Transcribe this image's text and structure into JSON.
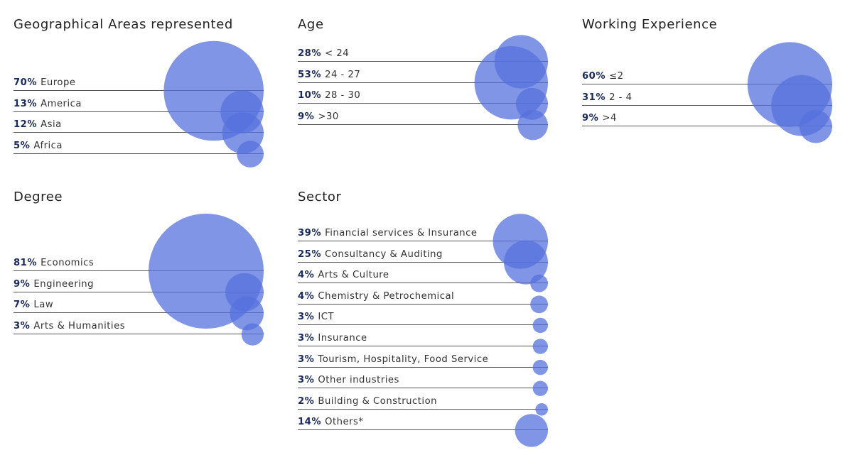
{
  "chart_data": [
    {
      "type": "bubble",
      "title": "Geographical Areas represented",
      "unit": "%",
      "categories": [
        "Europe",
        "America",
        "Asia",
        "Africa"
      ],
      "values": [
        70,
        13,
        12,
        5
      ],
      "labels": [
        "70%",
        "13%",
        "12%",
        "5%"
      ]
    },
    {
      "type": "bubble",
      "title": "Age",
      "unit": "%",
      "categories": [
        "< 24",
        "24 - 27",
        "28 - 30",
        ">30"
      ],
      "values": [
        28,
        53,
        10,
        9
      ],
      "labels": [
        "28%",
        "53%",
        "10%",
        "9%"
      ]
    },
    {
      "type": "bubble",
      "title": "Working Experience",
      "unit": "%",
      "categories": [
        "≤2",
        "2 - 4",
        ">4"
      ],
      "values": [
        60,
        31,
        9
      ],
      "labels": [
        "60%",
        "31%",
        "9%"
      ]
    },
    {
      "type": "bubble",
      "title": "Degree",
      "unit": "%",
      "categories": [
        "Economics",
        "Engineering",
        "Law",
        "Arts & Humanities"
      ],
      "values": [
        81,
        9,
        7,
        3
      ],
      "labels": [
        "81%",
        "9%",
        "7%",
        "3%"
      ]
    },
    {
      "type": "bubble",
      "title": "Sector",
      "unit": "%",
      "categories": [
        "Financial services & Insurance",
        "Consultancy & Auditing",
        "Arts & Culture",
        "Chemistry & Petrochemical",
        "ICT",
        "Insurance",
        "Tourism, Hospitality, Food Service",
        "Other industries",
        "Building & Construction",
        "Others*"
      ],
      "values": [
        39,
        25,
        4,
        4,
        3,
        3,
        3,
        3,
        2,
        14
      ],
      "labels": [
        "39%",
        "25%",
        "4%",
        "4%",
        "3%",
        "3%",
        "3%",
        "3%",
        "2%",
        "14%"
      ]
    }
  ],
  "colors": {
    "bubble": "#5572dd",
    "percent_text": "#1a2a5a",
    "line": "#555555"
  }
}
